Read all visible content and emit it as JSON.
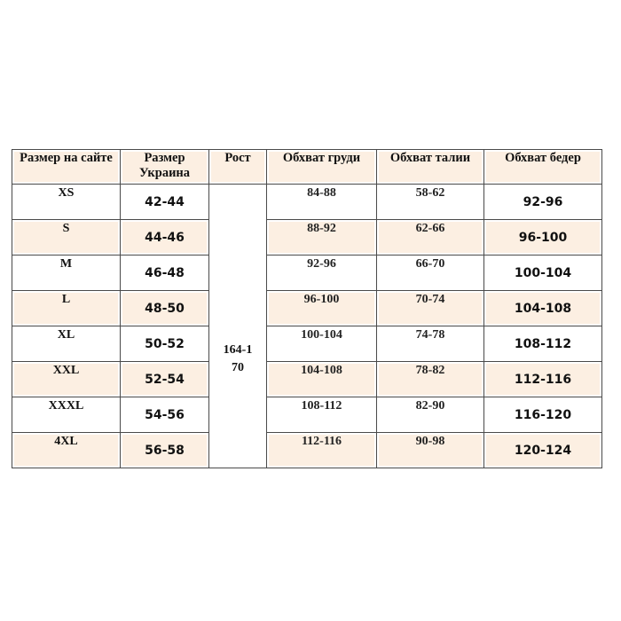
{
  "headers": [
    "Размер на сайте",
    "Размер Украина",
    "Рост",
    "Обхват груди",
    "Обхват талии",
    "Обхват бедер"
  ],
  "height_value": "164-170",
  "rows": [
    {
      "site": "XS",
      "ua": "42-44",
      "chest": "84-88",
      "waist": "58-62",
      "hips": "92-96"
    },
    {
      "site": "S",
      "ua": "44-46",
      "chest": "88-92",
      "waist": "62-66",
      "hips": "96-100"
    },
    {
      "site": "M",
      "ua": "46-48",
      "chest": "92-96",
      "waist": "66-70",
      "hips": "100-104"
    },
    {
      "site": "L",
      "ua": "48-50",
      "chest": "96-100",
      "waist": "70-74",
      "hips": "104-108"
    },
    {
      "site": "XL",
      "ua": "50-52",
      "chest": "100-104",
      "waist": "74-78",
      "hips": "108-112"
    },
    {
      "site": "XXL",
      "ua": "52-54",
      "chest": "104-108",
      "waist": "78-82",
      "hips": "112-116"
    },
    {
      "site": "XXXL",
      "ua": "54-56",
      "chest": "108-112",
      "waist": "82-90",
      "hips": "116-120"
    },
    {
      "site": "4XL",
      "ua": "56-58",
      "chest": "112-116",
      "waist": "90-98",
      "hips": "120-124"
    }
  ],
  "colors": {
    "row_alt": "#fcefe2",
    "border": "#4a4a4a"
  }
}
